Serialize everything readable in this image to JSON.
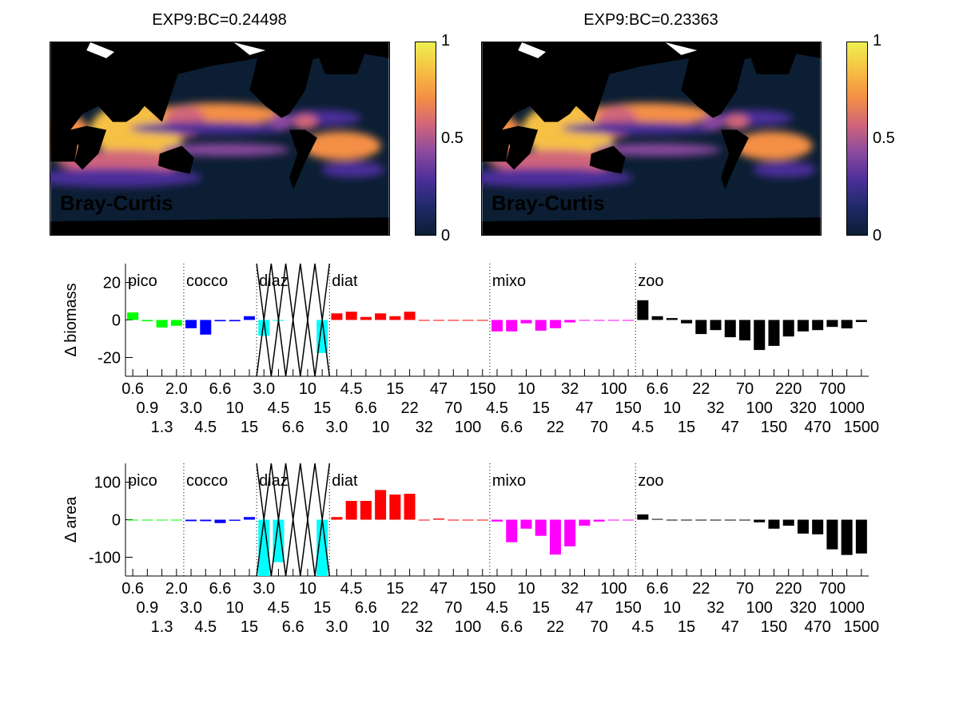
{
  "maps": [
    {
      "title": "EXP9:BC=0.24498",
      "overlay_label": "Bray-Curtis",
      "colorbar_ticks": [
        "1",
        "0.5",
        "0"
      ]
    },
    {
      "title": "EXP9:BC=0.23363",
      "overlay_label": "Bray-Curtis",
      "colorbar_ticks": [
        "1",
        "0.5",
        "0"
      ]
    }
  ],
  "colormap": [
    "#0b1e33",
    "#1d2a66",
    "#4b2e9a",
    "#8a4a9e",
    "#d0657a",
    "#f48f45",
    "#f6c044",
    "#eef051"
  ],
  "chart_data": [
    {
      "type": "bar",
      "ylabel": "Δ biomass",
      "ylim": [
        -30,
        30
      ],
      "yticks": [
        "20",
        "0",
        "-20"
      ],
      "ytick_values": [
        20,
        0,
        -20
      ],
      "grid": false,
      "groups": [
        {
          "name": "pico",
          "color": "#00ff00",
          "values": [
            4.0,
            -0.7,
            -4.0,
            -3.1
          ]
        },
        {
          "name": "cocco",
          "color": "#0000ff",
          "values": [
            -4.4,
            -7.8,
            -0.7,
            -0.7,
            2.0
          ]
        },
        {
          "name": "diaz",
          "color": "#00ffff",
          "values": [
            -8.4,
            -0.5,
            null,
            null,
            -17.6
          ]
        },
        {
          "name": "diat",
          "color": "#ff0000",
          "values": [
            3.5,
            4.4,
            1.6,
            3.5,
            2.0,
            4.4,
            0,
            0,
            0,
            0,
            0
          ]
        },
        {
          "name": "mixo",
          "color": "#ff00ff",
          "values": [
            -6.1,
            -6.1,
            -1.8,
            -5.7,
            -4.4,
            -1.3,
            0,
            0,
            0,
            0
          ]
        },
        {
          "name": "zoo",
          "color": "#000000",
          "values": [
            10.5,
            2.0,
            1.0,
            -1.8,
            -7.5,
            -5.4,
            -9.2,
            -10.9,
            -16.0,
            -13.8,
            -8.8,
            -6.1,
            -5.4,
            -3.7,
            -4.5,
            -1.1
          ]
        }
      ]
    },
    {
      "type": "bar",
      "ylabel": "Δ area",
      "ylim": [
        -150,
        150
      ],
      "yticks": [
        "100",
        "0",
        "-100"
      ],
      "ytick_values": [
        100,
        0,
        -100
      ],
      "grid": false,
      "groups": [
        {
          "name": "pico",
          "color": "#00ff00",
          "values": [
            0,
            0,
            0,
            0
          ]
        },
        {
          "name": "cocco",
          "color": "#0000ff",
          "values": [
            -4,
            -4,
            -9,
            -3,
            7
          ]
        },
        {
          "name": "diaz",
          "color": "#00ffff",
          "values": [
            -150,
            -113,
            null,
            null,
            -150
          ]
        },
        {
          "name": "diat",
          "color": "#ff0000",
          "values": [
            7,
            50,
            50,
            79,
            67,
            69,
            0,
            3,
            0,
            0,
            0
          ]
        },
        {
          "name": "mixo",
          "color": "#ff00ff",
          "values": [
            -5,
            -60,
            -24,
            -43,
            -93,
            -71,
            -16,
            -5,
            0,
            0
          ]
        },
        {
          "name": "zoo",
          "color": "#000000",
          "values": [
            14,
            2,
            0,
            0,
            -2,
            -2,
            0,
            -2,
            -7,
            -24,
            -16,
            -37,
            -39,
            -79,
            -94,
            -90
          ]
        }
      ]
    }
  ],
  "xtick_labels": [
    "0.6",
    "0.9",
    "1.3",
    "2.0",
    "3.0",
    "4.5",
    "6.6",
    "10",
    "15",
    "3.0",
    "4.5",
    "6.6",
    "10",
    "15",
    "3.0",
    "4.5",
    "6.6",
    "10",
    "15",
    "22",
    "32",
    "47",
    "70",
    "100",
    "150",
    "4.5",
    "6.6",
    "10",
    "15",
    "22",
    "32",
    "47",
    "70",
    "100",
    "150",
    "4.5",
    "6.6",
    "10",
    "15",
    "22",
    "32",
    "47",
    "70",
    "100",
    "150",
    "220",
    "320",
    "470",
    "700",
    "1000",
    "1500"
  ]
}
